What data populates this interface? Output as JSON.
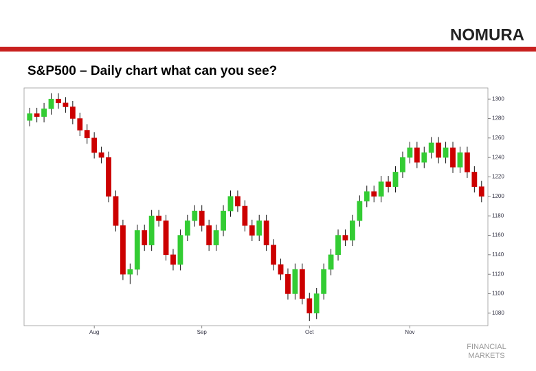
{
  "brand": "NOMURA",
  "footer": [
    "FINANCIAL",
    "MARKETS"
  ],
  "chart_data": {
    "type": "candlestick",
    "title": "S&P500 – Daily chart what can you see?",
    "categories": [
      null,
      null,
      null,
      null,
      null,
      null,
      null,
      null,
      null,
      "Aug",
      null,
      null,
      null,
      null,
      null,
      null,
      null,
      null,
      null,
      null,
      null,
      null,
      null,
      null,
      "Sep",
      null,
      null,
      null,
      null,
      null,
      null,
      null,
      null,
      null,
      null,
      null,
      null,
      null,
      null,
      "Oct",
      null,
      null,
      null,
      null,
      null,
      null,
      null,
      null,
      null,
      null,
      null,
      null,
      null,
      "Nov",
      null,
      null,
      null,
      null,
      null,
      null,
      null,
      null,
      null,
      null
    ],
    "open": [
      1278,
      1285,
      1282,
      1290,
      1300,
      1296,
      1292,
      1280,
      1268,
      1260,
      1245,
      1240,
      1200,
      1170,
      1120,
      1125,
      1165,
      1150,
      1180,
      1175,
      1140,
      1130,
      1160,
      1175,
      1185,
      1170,
      1150,
      1165,
      1185,
      1200,
      1190,
      1170,
      1160,
      1175,
      1150,
      1130,
      1120,
      1100,
      1125,
      1095,
      1080,
      1100,
      1125,
      1140,
      1160,
      1155,
      1175,
      1195,
      1205,
      1200,
      1215,
      1210,
      1225,
      1240,
      1250,
      1235,
      1245,
      1255,
      1240,
      1250,
      1230,
      1245,
      1225,
      1210
    ],
    "high": [
      1291,
      1291,
      1296,
      1306,
      1306,
      1302,
      1298,
      1286,
      1274,
      1266,
      1251,
      1246,
      1206,
      1176,
      1131,
      1171,
      1171,
      1186,
      1186,
      1181,
      1146,
      1166,
      1181,
      1191,
      1191,
      1176,
      1171,
      1191,
      1206,
      1206,
      1196,
      1176,
      1181,
      1181,
      1156,
      1136,
      1126,
      1131,
      1131,
      1101,
      1106,
      1131,
      1146,
      1166,
      1166,
      1181,
      1201,
      1211,
      1211,
      1221,
      1221,
      1231,
      1246,
      1256,
      1256,
      1251,
      1261,
      1261,
      1256,
      1256,
      1251,
      1251,
      1231,
      1216
    ],
    "low": [
      1272,
      1276,
      1276,
      1284,
      1290,
      1286,
      1274,
      1262,
      1254,
      1239,
      1234,
      1194,
      1164,
      1114,
      1110,
      1119,
      1144,
      1144,
      1169,
      1134,
      1124,
      1124,
      1154,
      1169,
      1164,
      1144,
      1144,
      1159,
      1179,
      1184,
      1164,
      1154,
      1154,
      1144,
      1124,
      1114,
      1094,
      1094,
      1089,
      1072,
      1074,
      1094,
      1119,
      1134,
      1149,
      1149,
      1169,
      1189,
      1194,
      1194,
      1204,
      1204,
      1219,
      1234,
      1229,
      1229,
      1239,
      1234,
      1234,
      1224,
      1224,
      1219,
      1204,
      1194
    ],
    "close": [
      1285,
      1282,
      1290,
      1300,
      1296,
      1292,
      1280,
      1268,
      1260,
      1245,
      1240,
      1200,
      1170,
      1120,
      1125,
      1165,
      1150,
      1180,
      1175,
      1140,
      1130,
      1160,
      1175,
      1185,
      1170,
      1150,
      1165,
      1185,
      1200,
      1190,
      1170,
      1160,
      1175,
      1150,
      1130,
      1120,
      1100,
      1125,
      1095,
      1080,
      1100,
      1125,
      1140,
      1160,
      1155,
      1175,
      1195,
      1205,
      1200,
      1215,
      1210,
      1225,
      1240,
      1250,
      1235,
      1245,
      1255,
      1240,
      1250,
      1230,
      1245,
      1225,
      1210,
      1200
    ],
    "up_color": "#33cc33",
    "down_color": "#cc0000",
    "ylim": [
      1070,
      1310
    ],
    "yticks": [
      1080,
      1100,
      1120,
      1140,
      1160,
      1180,
      1200,
      1220,
      1240,
      1260,
      1280,
      1300
    ],
    "grid": false
  }
}
